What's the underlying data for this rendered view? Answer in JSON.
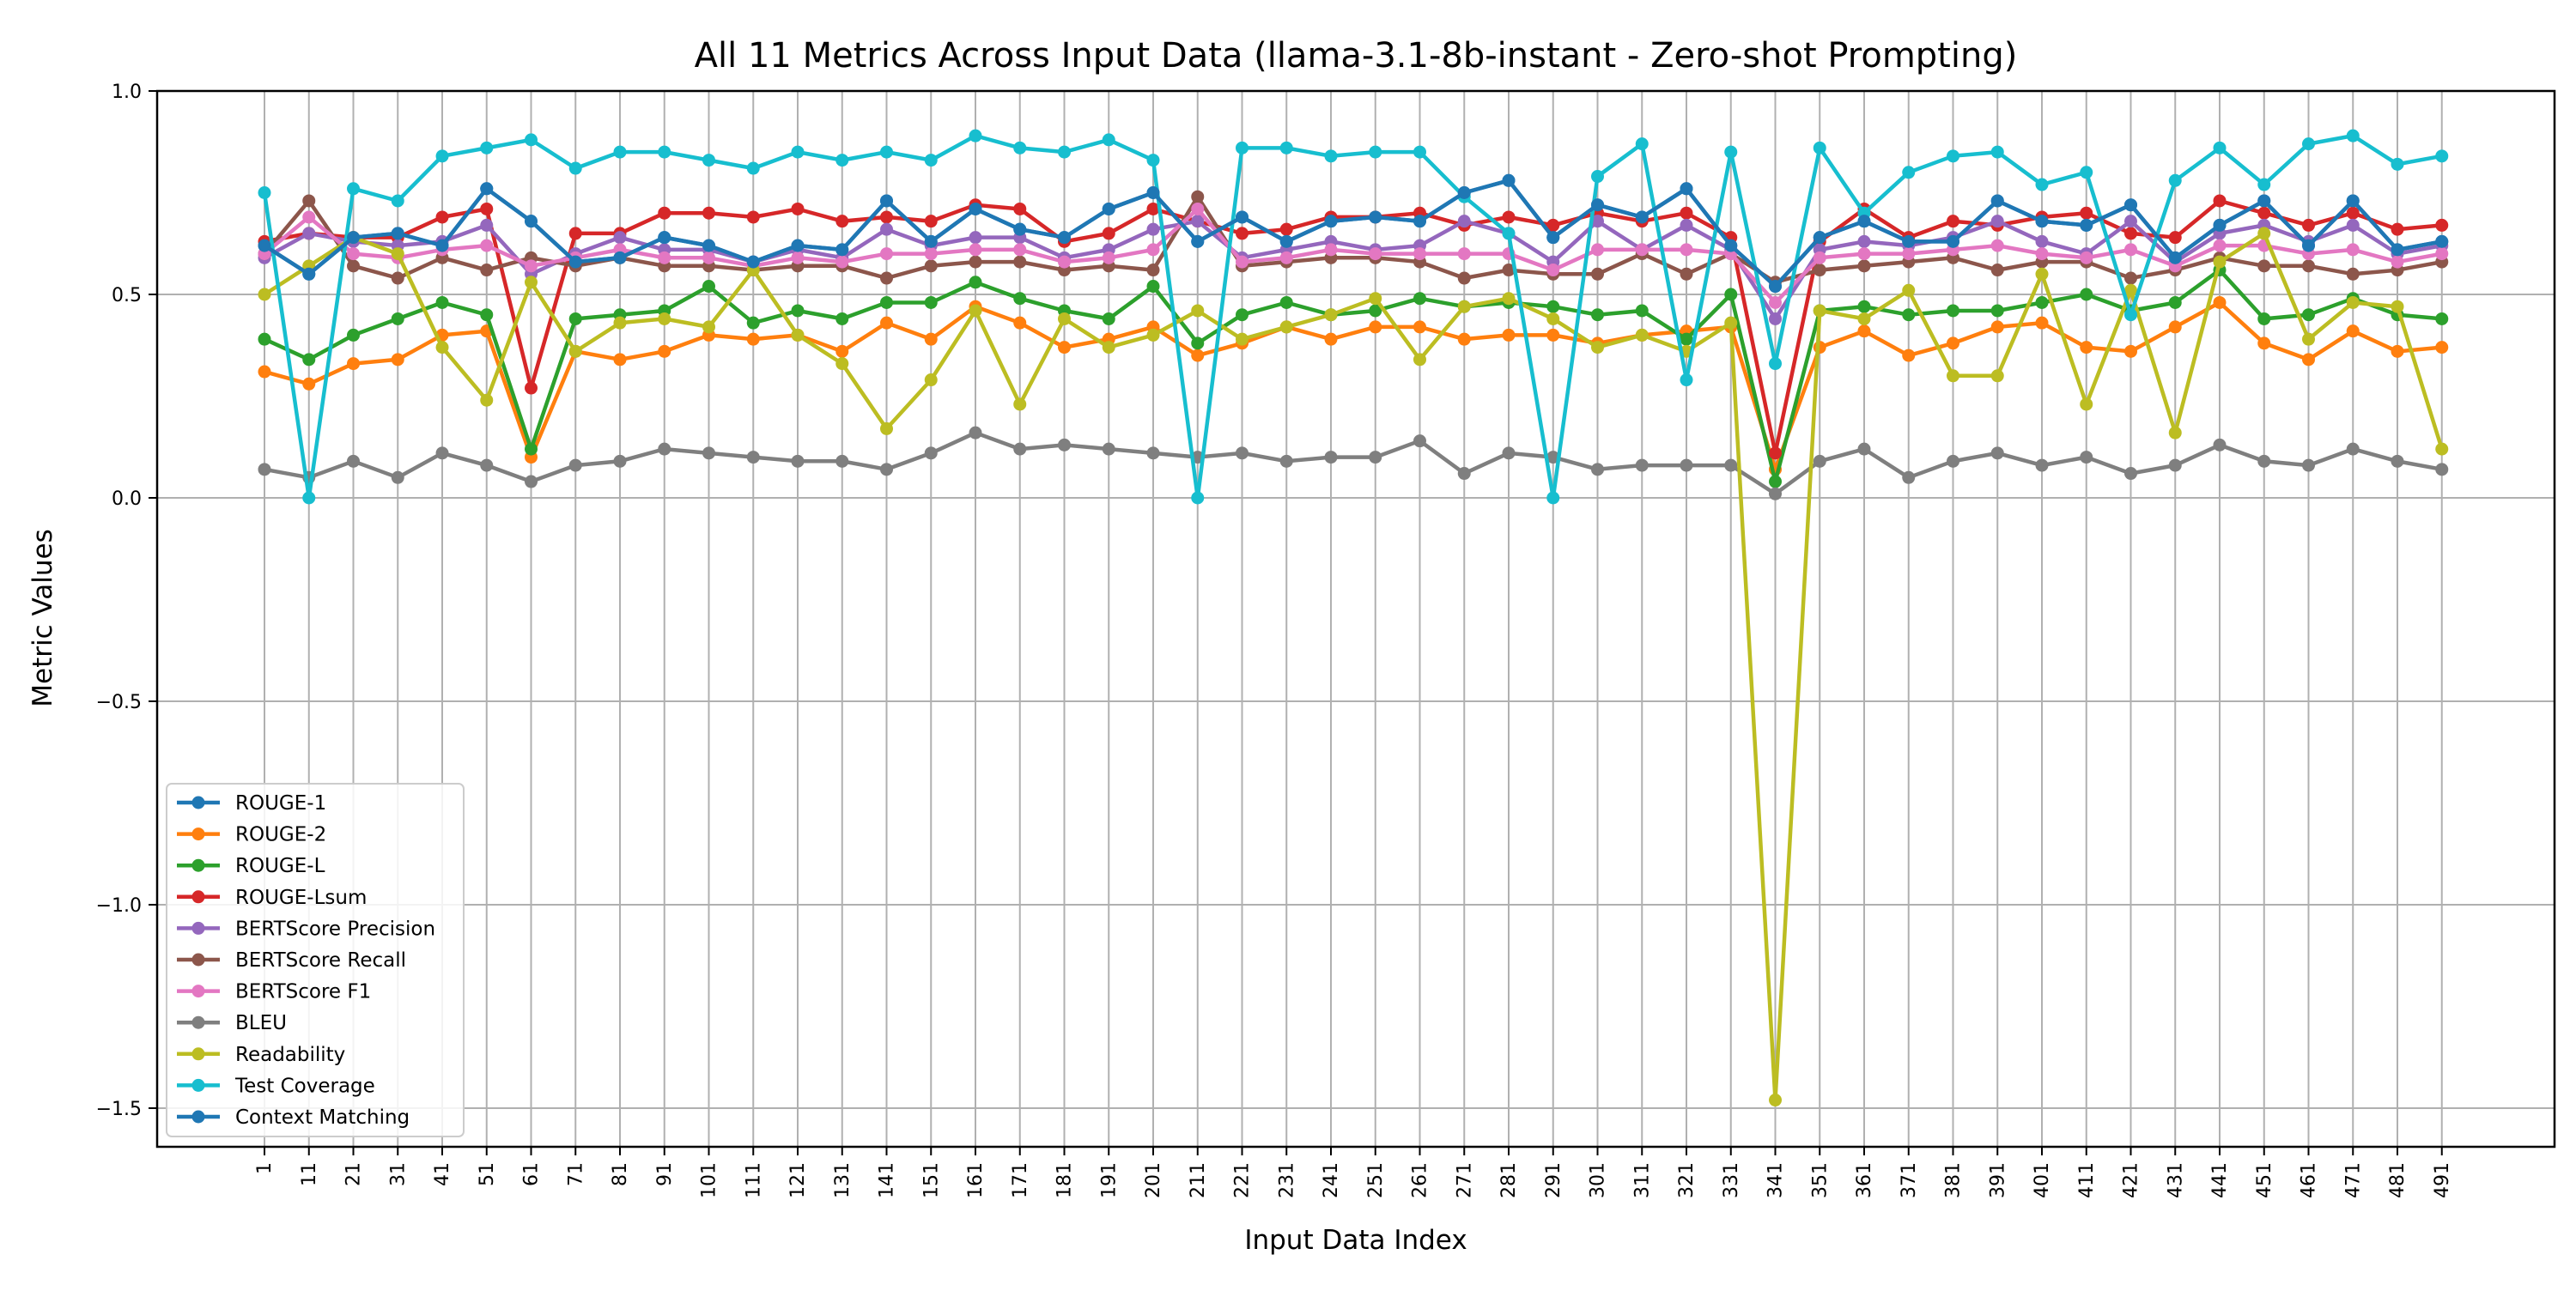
{
  "chart_data": {
    "type": "line",
    "title": "All 11 Metrics Across Input Data (llama-3.1-8b-instant - Zero-shot Prompting)",
    "xlabel": "Input Data Index",
    "ylabel": "Metric Values",
    "ylim": [
      -1.6,
      1.0
    ],
    "yticks": [
      1.0,
      0.5,
      0.0,
      -0.5,
      -1.0,
      -1.5
    ],
    "ytick_labels": [
      "1.0",
      "0.5",
      "0.0",
      "−0.5",
      "−1.0",
      "−1.5"
    ],
    "grid": true,
    "legend_position": "lower-left",
    "categories": [
      "1",
      "11",
      "21",
      "31",
      "41",
      "51",
      "61",
      "71",
      "81",
      "91",
      "101",
      "111",
      "121",
      "131",
      "141",
      "151",
      "161",
      "171",
      "181",
      "191",
      "201",
      "211",
      "221",
      "231",
      "241",
      "251",
      "261",
      "271",
      "281",
      "291",
      "301",
      "311",
      "321",
      "331",
      "341",
      "351",
      "361",
      "371",
      "381",
      "391",
      "401",
      "411",
      "421",
      "431",
      "441",
      "451",
      "461",
      "471",
      "481",
      "491"
    ],
    "series": [
      {
        "name": "ROUGE-1",
        "color": "#1f77b4",
        "values": [
          0.62,
          0.55,
          0.64,
          0.65,
          0.62,
          0.76,
          0.68,
          0.58,
          0.59,
          0.64,
          0.62,
          0.58,
          0.62,
          0.61,
          0.73,
          0.63,
          0.71,
          0.66,
          0.64,
          0.71,
          0.75,
          0.63,
          0.69,
          0.63,
          0.68,
          0.69,
          0.68,
          0.75,
          0.78,
          0.64,
          0.72,
          0.69,
          0.76,
          0.62,
          0.52,
          0.64,
          0.68,
          0.63,
          0.63,
          0.73,
          0.68,
          0.67,
          0.72,
          0.59,
          0.67,
          0.73,
          0.62,
          0.73,
          0.61,
          0.63
        ]
      },
      {
        "name": "ROUGE-2",
        "color": "#ff7f0e",
        "values": [
          0.31,
          0.28,
          0.33,
          0.34,
          0.4,
          0.41,
          0.1,
          0.36,
          0.34,
          0.36,
          0.4,
          0.39,
          0.4,
          0.36,
          0.43,
          0.39,
          0.47,
          0.43,
          0.37,
          0.39,
          0.42,
          0.35,
          0.38,
          0.42,
          0.39,
          0.42,
          0.42,
          0.39,
          0.4,
          0.4,
          0.38,
          0.4,
          0.41,
          0.42,
          0.07,
          0.37,
          0.41,
          0.35,
          0.38,
          0.42,
          0.43,
          0.37,
          0.36,
          0.42,
          0.48,
          0.38,
          0.34,
          0.41,
          0.36,
          0.37
        ]
      },
      {
        "name": "ROUGE-L",
        "color": "#2ca02c",
        "values": [
          0.39,
          0.34,
          0.4,
          0.44,
          0.48,
          0.45,
          0.12,
          0.44,
          0.45,
          0.46,
          0.52,
          0.43,
          0.46,
          0.44,
          0.48,
          0.48,
          0.53,
          0.49,
          0.46,
          0.44,
          0.52,
          0.38,
          0.45,
          0.48,
          0.45,
          0.46,
          0.49,
          0.47,
          0.48,
          0.47,
          0.45,
          0.46,
          0.39,
          0.5,
          0.04,
          0.46,
          0.47,
          0.45,
          0.46,
          0.46,
          0.48,
          0.5,
          0.46,
          0.48,
          0.56,
          0.44,
          0.45,
          0.49,
          0.45,
          0.44
        ]
      },
      {
        "name": "ROUGE-Lsum",
        "color": "#d62728",
        "values": [
          0.63,
          0.65,
          0.64,
          0.64,
          0.69,
          0.71,
          0.27,
          0.65,
          0.65,
          0.7,
          0.7,
          0.69,
          0.71,
          0.68,
          0.69,
          0.68,
          0.72,
          0.71,
          0.63,
          0.65,
          0.71,
          0.68,
          0.65,
          0.66,
          0.69,
          0.69,
          0.7,
          0.67,
          0.69,
          0.67,
          0.7,
          0.68,
          0.7,
          0.64,
          0.11,
          0.63,
          0.71,
          0.64,
          0.68,
          0.67,
          0.69,
          0.7,
          0.65,
          0.64,
          0.73,
          0.7,
          0.67,
          0.7,
          0.66,
          0.67
        ]
      },
      {
        "name": "BERTScore Precision",
        "color": "#9467bd",
        "values": [
          0.59,
          0.65,
          0.63,
          0.62,
          0.63,
          0.67,
          0.55,
          0.6,
          0.64,
          0.61,
          0.61,
          0.58,
          0.61,
          0.59,
          0.66,
          0.62,
          0.64,
          0.64,
          0.59,
          0.61,
          0.66,
          0.68,
          0.59,
          0.61,
          0.63,
          0.61,
          0.62,
          0.68,
          0.65,
          0.58,
          0.68,
          0.61,
          0.67,
          0.61,
          0.44,
          0.61,
          0.63,
          0.62,
          0.64,
          0.68,
          0.63,
          0.6,
          0.68,
          0.58,
          0.65,
          0.67,
          0.63,
          0.67,
          0.6,
          0.62
        ]
      },
      {
        "name": "BERTScore Recall",
        "color": "#8c564b",
        "values": [
          0.6,
          0.73,
          0.57,
          0.54,
          0.59,
          0.56,
          0.59,
          0.57,
          0.59,
          0.57,
          0.57,
          0.56,
          0.57,
          0.57,
          0.54,
          0.57,
          0.58,
          0.58,
          0.56,
          0.57,
          0.56,
          0.74,
          0.57,
          0.58,
          0.59,
          0.59,
          0.58,
          0.54,
          0.56,
          0.55,
          0.55,
          0.6,
          0.55,
          0.6,
          0.53,
          0.56,
          0.57,
          0.58,
          0.59,
          0.56,
          0.58,
          0.58,
          0.54,
          0.56,
          0.59,
          0.57,
          0.57,
          0.55,
          0.56,
          0.58
        ]
      },
      {
        "name": "BERTScore F1",
        "color": "#e377c2",
        "values": [
          0.6,
          0.69,
          0.6,
          0.59,
          0.61,
          0.62,
          0.57,
          0.59,
          0.61,
          0.59,
          0.59,
          0.57,
          0.59,
          0.58,
          0.6,
          0.6,
          0.61,
          0.61,
          0.58,
          0.59,
          0.61,
          0.71,
          0.58,
          0.59,
          0.61,
          0.6,
          0.6,
          0.6,
          0.6,
          0.56,
          0.61,
          0.61,
          0.61,
          0.6,
          0.48,
          0.59,
          0.6,
          0.6,
          0.61,
          0.62,
          0.6,
          0.59,
          0.61,
          0.57,
          0.62,
          0.62,
          0.6,
          0.61,
          0.58,
          0.6
        ]
      },
      {
        "name": "BLEU",
        "color": "#7f7f7f",
        "values": [
          0.07,
          0.05,
          0.09,
          0.05,
          0.11,
          0.08,
          0.04,
          0.08,
          0.09,
          0.12,
          0.11,
          0.1,
          0.09,
          0.09,
          0.07,
          0.11,
          0.16,
          0.12,
          0.13,
          0.12,
          0.11,
          0.1,
          0.11,
          0.09,
          0.1,
          0.1,
          0.14,
          0.06,
          0.11,
          0.1,
          0.07,
          0.08,
          0.08,
          0.08,
          0.01,
          0.09,
          0.12,
          0.05,
          0.09,
          0.11,
          0.08,
          0.1,
          0.06,
          0.08,
          0.13,
          0.09,
          0.08,
          0.12,
          0.09,
          0.07
        ]
      },
      {
        "name": "Readability",
        "color": "#bcbd22",
        "values": [
          0.5,
          0.57,
          0.64,
          0.6,
          0.37,
          0.24,
          0.53,
          0.36,
          0.43,
          0.44,
          0.42,
          0.56,
          0.4,
          0.33,
          0.17,
          0.29,
          0.46,
          0.23,
          0.44,
          0.37,
          0.4,
          0.46,
          0.39,
          0.42,
          0.45,
          0.49,
          0.34,
          0.47,
          0.49,
          0.44,
          0.37,
          0.4,
          0.36,
          0.43,
          -1.48,
          0.46,
          0.44,
          0.51,
          0.3,
          0.3,
          0.55,
          0.23,
          0.51,
          0.16,
          0.58,
          0.65,
          0.39,
          0.48,
          0.47,
          0.12
        ]
      },
      {
        "name": "Test Coverage",
        "color": "#17becf",
        "values": [
          0.75,
          0.0,
          0.76,
          0.73,
          0.84,
          0.86,
          0.88,
          0.81,
          0.85,
          0.85,
          0.83,
          0.81,
          0.85,
          0.83,
          0.85,
          0.83,
          0.89,
          0.86,
          0.85,
          0.88,
          0.83,
          0.0,
          0.86,
          0.86,
          0.84,
          0.85,
          0.85,
          0.74,
          0.65,
          0.0,
          0.79,
          0.87,
          0.29,
          0.85,
          0.33,
          0.86,
          0.7,
          0.8,
          0.84,
          0.85,
          0.77,
          0.8,
          0.45,
          0.78,
          0.86,
          0.77,
          0.87,
          0.89,
          0.82,
          0.84
        ]
      },
      {
        "name": "Context Matching",
        "color": "#1f77b4",
        "values": [
          0.62,
          0.55,
          0.64,
          0.65,
          0.62,
          0.76,
          0.68,
          0.58,
          0.59,
          0.64,
          0.62,
          0.58,
          0.62,
          0.61,
          0.73,
          0.63,
          0.71,
          0.66,
          0.64,
          0.71,
          0.75,
          0.63,
          0.69,
          0.63,
          0.68,
          0.69,
          0.68,
          0.75,
          0.78,
          0.64,
          0.72,
          0.69,
          0.76,
          0.62,
          0.52,
          0.64,
          0.68,
          0.63,
          0.63,
          0.73,
          0.68,
          0.67,
          0.72,
          0.59,
          0.67,
          0.73,
          0.62,
          0.73,
          0.61,
          0.63
        ]
      }
    ]
  }
}
